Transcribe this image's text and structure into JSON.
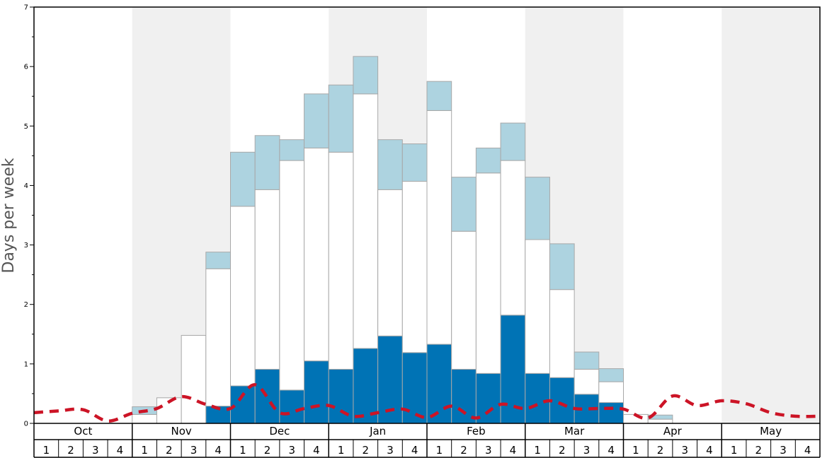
{
  "chart_data": {
    "type": "bar",
    "ylabel": "Days per week",
    "xlabel": "",
    "ylim": [
      0,
      7
    ],
    "yticks": [
      0,
      1,
      2,
      3,
      4,
      5,
      6,
      7
    ],
    "grid": false,
    "months": [
      {
        "label": "Oct",
        "weeks": [
          "1",
          "2",
          "3",
          "4"
        ]
      },
      {
        "label": "Nov",
        "weeks": [
          "1",
          "2",
          "3",
          "4"
        ]
      },
      {
        "label": "Dec",
        "weeks": [
          "1",
          "2",
          "3",
          "4"
        ]
      },
      {
        "label": "Jan",
        "weeks": [
          "1",
          "2",
          "3",
          "4"
        ]
      },
      {
        "label": "Feb",
        "weeks": [
          "1",
          "2",
          "3",
          "4"
        ]
      },
      {
        "label": "Mar",
        "weeks": [
          "1",
          "2",
          "3",
          "4"
        ]
      },
      {
        "label": "Apr",
        "weeks": [
          "1",
          "2",
          "3",
          "4"
        ]
      },
      {
        "label": "May",
        "weeks": [
          "1",
          "2",
          "3",
          "4"
        ]
      }
    ],
    "stacks": [
      {
        "dark": 0,
        "white": 0,
        "light": 0
      },
      {
        "dark": 0,
        "white": 0,
        "light": 0
      },
      {
        "dark": 0,
        "white": 0,
        "light": 0
      },
      {
        "dark": 0,
        "white": 0,
        "light": 0
      },
      {
        "dark": 0,
        "white": 0.15,
        "light": 0.13
      },
      {
        "dark": 0,
        "white": 0.43,
        "light": 0
      },
      {
        "dark": 0,
        "white": 1.48,
        "light": 0
      },
      {
        "dark": 0.29,
        "white": 2.31,
        "light": 0.28
      },
      {
        "dark": 0.63,
        "white": 3.02,
        "light": 0.91
      },
      {
        "dark": 0.91,
        "white": 3.02,
        "light": 0.91
      },
      {
        "dark": 0.56,
        "white": 3.86,
        "light": 0.35
      },
      {
        "dark": 1.05,
        "white": 3.58,
        "light": 0.91
      },
      {
        "dark": 0.91,
        "white": 3.65,
        "light": 1.13
      },
      {
        "dark": 1.26,
        "white": 4.28,
        "light": 0.63
      },
      {
        "dark": 1.47,
        "white": 2.46,
        "light": 0.84
      },
      {
        "dark": 1.19,
        "white": 2.88,
        "light": 0.63
      },
      {
        "dark": 1.33,
        "white": 3.93,
        "light": 0.49
      },
      {
        "dark": 0.91,
        "white": 2.32,
        "light": 0.91
      },
      {
        "dark": 0.84,
        "white": 3.37,
        "light": 0.42
      },
      {
        "dark": 1.82,
        "white": 2.6,
        "light": 0.63
      },
      {
        "dark": 0.84,
        "white": 2.25,
        "light": 1.05
      },
      {
        "dark": 0.77,
        "white": 1.48,
        "light": 0.77
      },
      {
        "dark": 0.49,
        "white": 0.42,
        "light": 0.29
      },
      {
        "dark": 0.35,
        "white": 0.35,
        "light": 0.22
      },
      {
        "dark": 0,
        "white": 0.15,
        "light": 0
      },
      {
        "dark": 0,
        "white": 0.07,
        "light": 0.07
      },
      {
        "dark": 0,
        "white": 0,
        "light": 0
      },
      {
        "dark": 0,
        "white": 0,
        "light": 0
      },
      {
        "dark": 0,
        "white": 0,
        "light": 0
      },
      {
        "dark": 0,
        "white": 0,
        "light": 0
      },
      {
        "dark": 0,
        "white": 0,
        "light": 0
      },
      {
        "dark": 0,
        "white": 0,
        "light": 0
      }
    ],
    "trend_line": [
      0.18,
      0.21,
      0.23,
      0.04,
      0.17,
      0.25,
      0.45,
      0.32,
      0.25,
      0.65,
      0.18,
      0.25,
      0.3,
      0.12,
      0.18,
      0.24,
      0.1,
      0.29,
      0.09,
      0.32,
      0.25,
      0.38,
      0.25,
      0.25,
      0.24,
      0.09,
      0.46,
      0.3,
      0.38,
      0.33,
      0.18,
      0.12,
      0.12
    ],
    "colors": {
      "dark": "#0073b5",
      "white": "#ffffff",
      "light": "#add3e0",
      "bar_stroke": "#a8a8a8",
      "band_shade": "#f0f0f0",
      "trend": "#cc1426",
      "axis": "#000000"
    }
  }
}
